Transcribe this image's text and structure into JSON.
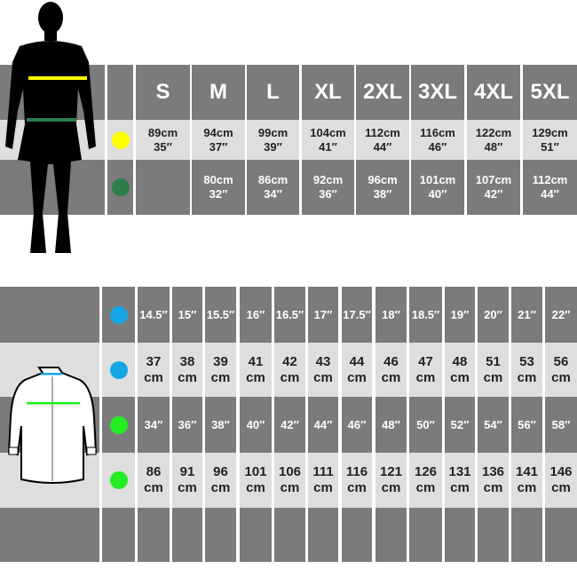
{
  "top_table": {
    "sizes": [
      "S",
      "M",
      "L",
      "XL",
      "2XL",
      "3XL",
      "4XL",
      "5XL"
    ],
    "chest_color": "#ffff00",
    "waist_color": "#2e7d4a",
    "chest": [
      [
        "89cm",
        "35″"
      ],
      [
        "94cm",
        "37″"
      ],
      [
        "99cm",
        "39″"
      ],
      [
        "104cm",
        "41″"
      ],
      [
        "112cm",
        "44″"
      ],
      [
        "116cm",
        "46″"
      ],
      [
        "122cm",
        "48″"
      ],
      [
        "129cm",
        "51″"
      ]
    ],
    "waist": [
      [
        "",
        ""
      ],
      [
        "80cm",
        "32″"
      ],
      [
        "86cm",
        "34″"
      ],
      [
        "92cm",
        "36″"
      ],
      [
        "96cm",
        "38″"
      ],
      [
        "101cm",
        "40″"
      ],
      [
        "107cm",
        "42″"
      ],
      [
        "112cm",
        "44″"
      ]
    ]
  },
  "bottom_table": {
    "collar_color": "#16a6e6",
    "chest_color": "#22ee22",
    "collar_in": [
      "14.5″",
      "15″",
      "15.5″",
      "16″",
      "16.5″",
      "17″",
      "17.5″",
      "18″",
      "18.5″",
      "19″",
      "20″",
      "21″",
      "22″"
    ],
    "collar_cm": [
      "37",
      "38",
      "39",
      "41",
      "42",
      "43",
      "44",
      "46",
      "47",
      "48",
      "51",
      "53",
      "56"
    ],
    "chest_in": [
      "34″",
      "36″",
      "38″",
      "40″",
      "42″",
      "44″",
      "46″",
      "48″",
      "50″",
      "52″",
      "54″",
      "56″",
      "58″"
    ],
    "chest_cm": [
      "86",
      "91",
      "96",
      "101",
      "106",
      "111",
      "116",
      "121",
      "126",
      "131",
      "136",
      "141",
      "146"
    ],
    "unit": "cm"
  }
}
